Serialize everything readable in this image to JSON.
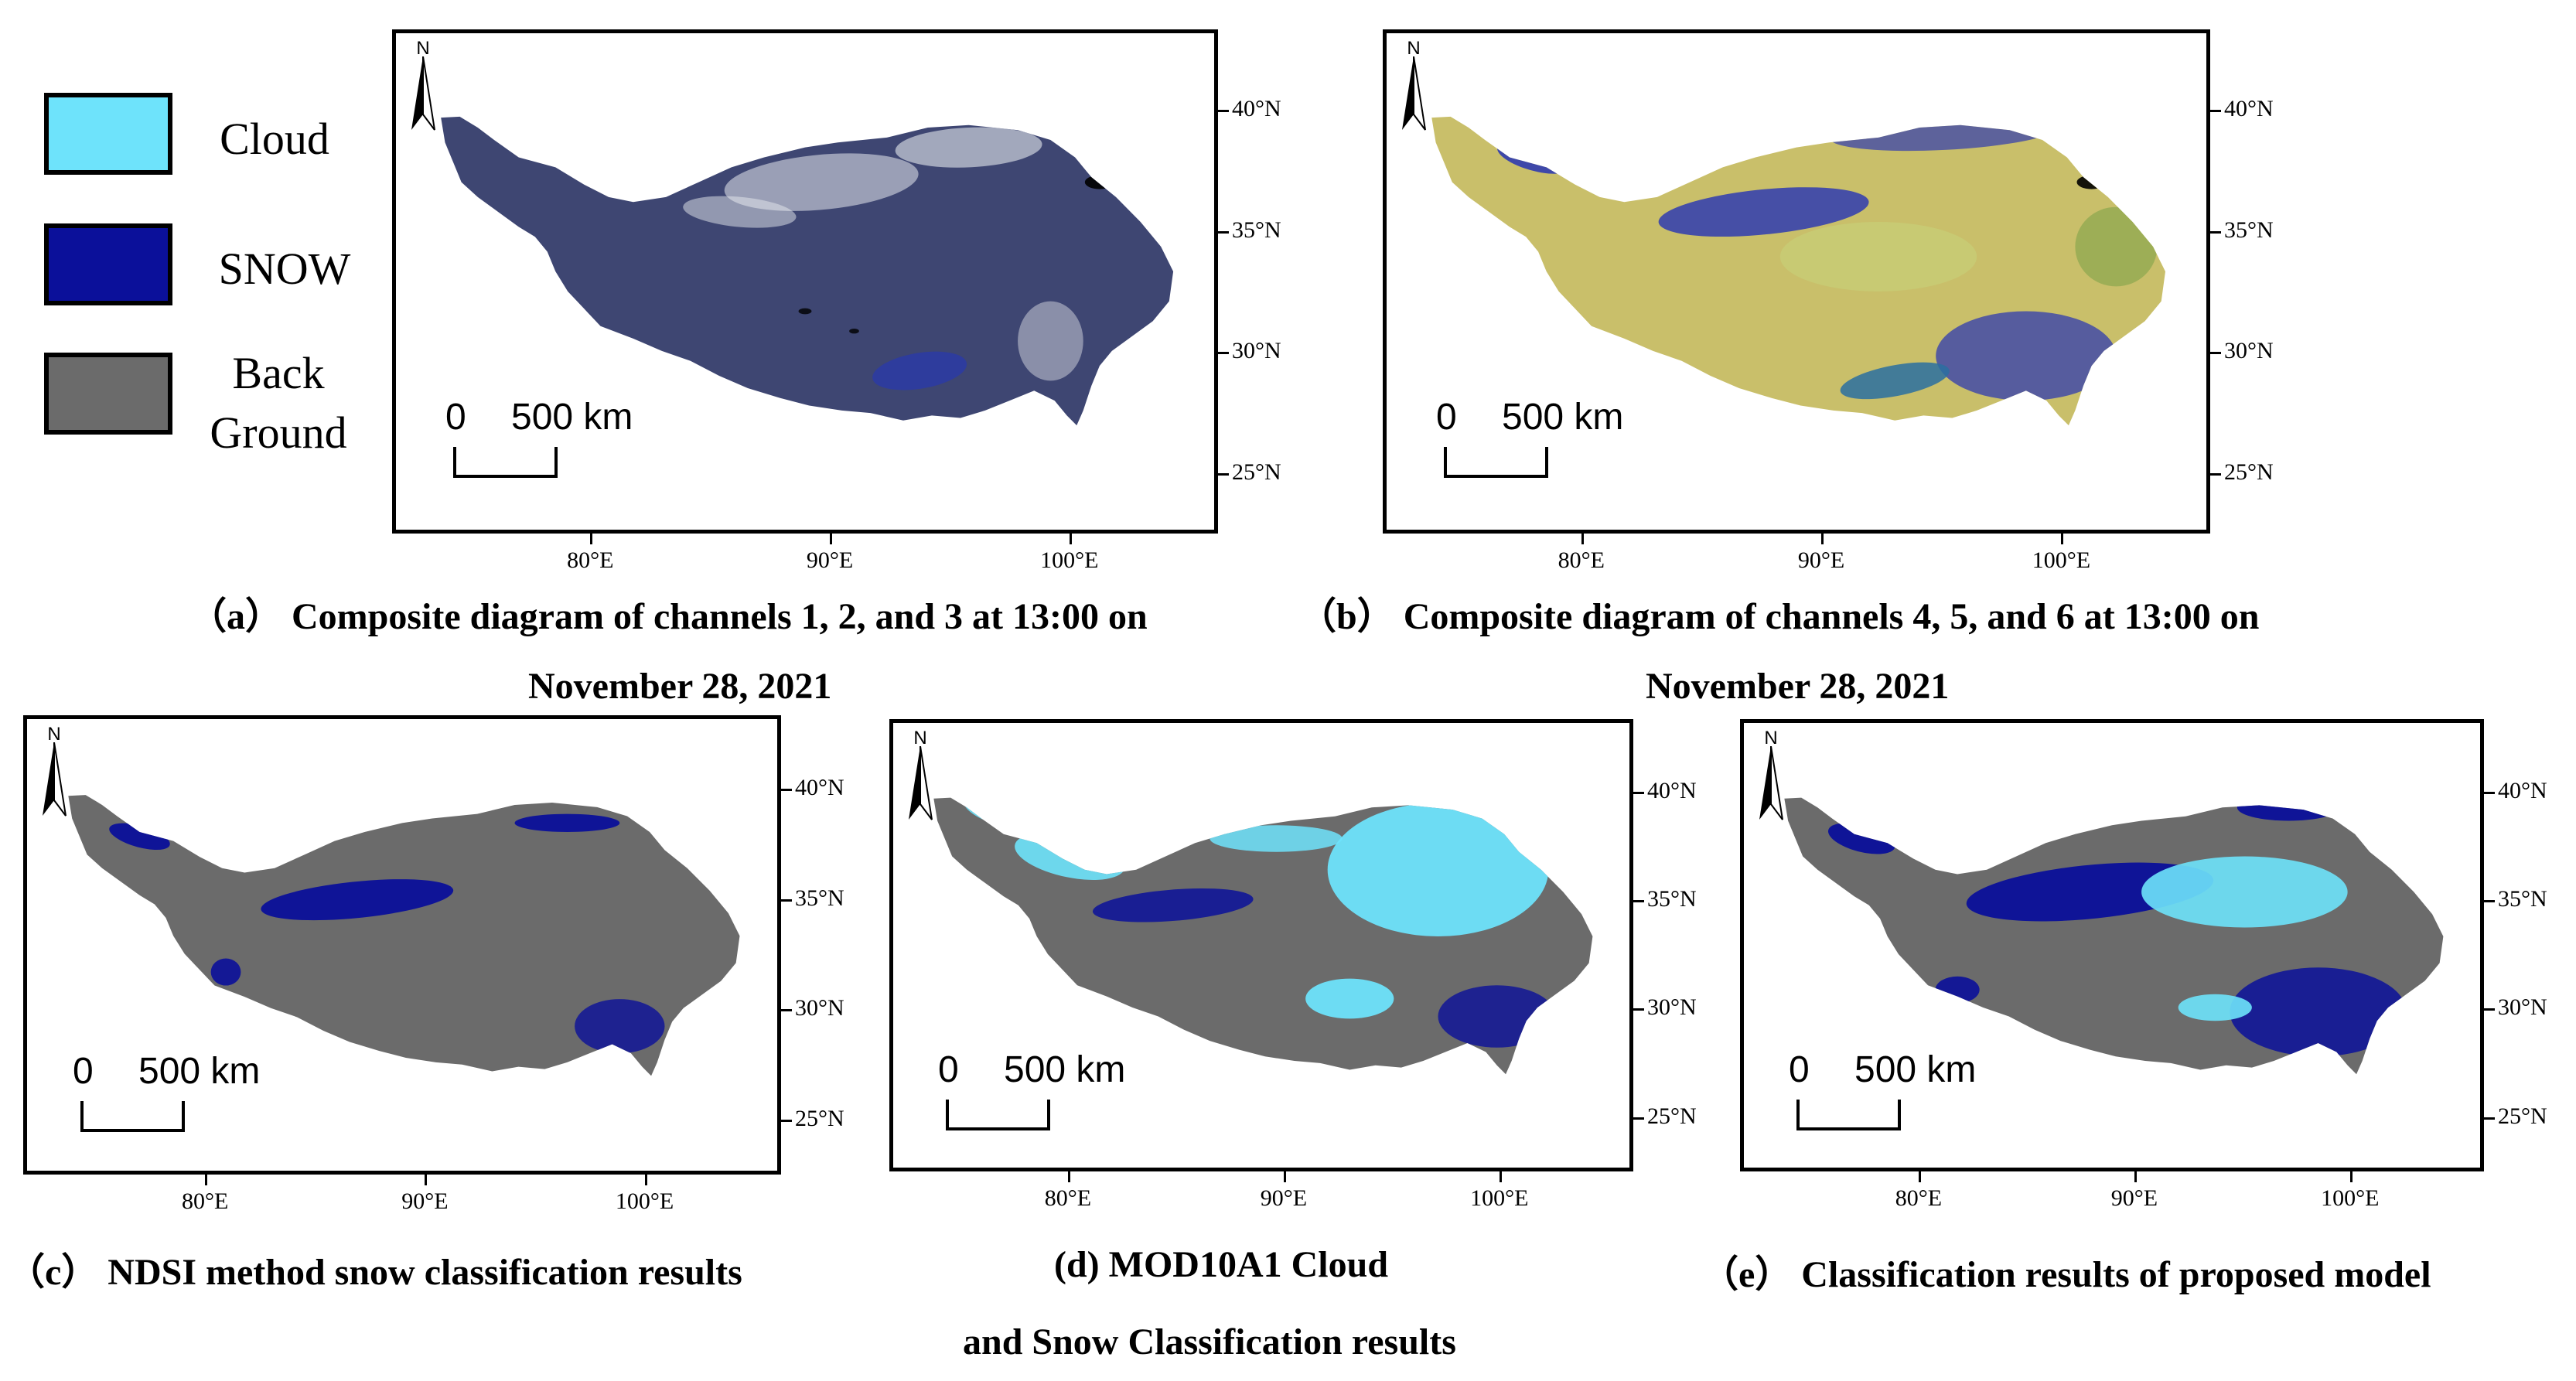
{
  "legend": [
    {
      "label": "Cloud",
      "color": "#6ee3fb"
    },
    {
      "label": "SNOW",
      "color": "#0b109a"
    },
    {
      "label": "Back\nGround",
      "color": "#6b6b6b"
    }
  ],
  "map_common": {
    "north_label": "N",
    "scale_zero": "0",
    "scale_distance": "500 km",
    "lat_labels": [
      "40°N",
      "35°N",
      "30°N",
      "25°N"
    ],
    "lon_labels": [
      "80°E",
      "90°E",
      "100°E"
    ]
  },
  "panels": [
    {
      "id": "a",
      "caption": "（a） Composite diagram of channels 1, 2, and 3 at 13:00 on",
      "caption_line2": "November 28, 2021",
      "style": "rgb123",
      "base_color": "#3e4672",
      "accent_color": "#e6e9ee"
    },
    {
      "id": "b",
      "caption": "（b） Composite diagram of channels 4, 5, and 6 at 13:00 on",
      "caption_line2": "November 28, 2021",
      "style": "rgb456",
      "base_color": "#c9bf6a",
      "accent_color": "#2f3bb0"
    },
    {
      "id": "c",
      "caption": "（c） NDSI method snow classification results",
      "style": "ndsi",
      "base_color": "#6b6b6b",
      "accent_color": "#0b109a"
    },
    {
      "id": "d",
      "caption": "(d) MOD10A1 Cloud",
      "caption_line2": "and Snow Classification results",
      "style": "mod10a1",
      "base_color": "#6b6b6b",
      "accent_color": "#6ee3fb"
    },
    {
      "id": "e",
      "caption": "（e） Classification results of proposed model",
      "style": "proposed",
      "base_color": "#6b6b6b",
      "accent_color": "#0b109a"
    }
  ]
}
